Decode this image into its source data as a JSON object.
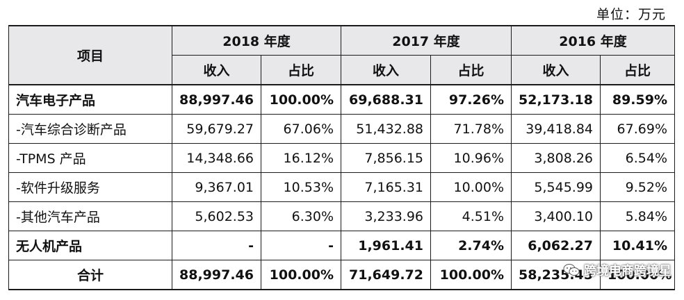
{
  "unit_label": "单位：万元",
  "header": {
    "item_col": "项目",
    "years": [
      "2018 年度",
      "2017 年度",
      "2016 年度"
    ],
    "sub_cols": [
      "收入",
      "占比"
    ]
  },
  "rows": [
    {
      "item": "汽车电子产品",
      "bold": true,
      "v": [
        "88,997.46",
        "100.00%",
        "69,688.31",
        "97.26%",
        "52,173.18",
        "89.59%"
      ]
    },
    {
      "item": "-汽车综合诊断产品",
      "bold": false,
      "v": [
        "59,679.27",
        "67.06%",
        "51,432.88",
        "71.78%",
        "39,418.84",
        "67.69%"
      ]
    },
    {
      "item": "-TPMS 产品",
      "bold": false,
      "v": [
        "14,348.66",
        "16.12%",
        "7,856.15",
        "10.96%",
        "3,808.26",
        "6.54%"
      ]
    },
    {
      "item": "-软件升级服务",
      "bold": false,
      "v": [
        "9,367.01",
        "10.53%",
        "7,165.31",
        "10.00%",
        "5,545.99",
        "9.52%"
      ]
    },
    {
      "item": "-其他汽车产品",
      "bold": false,
      "v": [
        "5,602.53",
        "6.30%",
        "3,233.96",
        "4.51%",
        "3,400.10",
        "5.84%"
      ]
    },
    {
      "item": "无人机产品",
      "bold": true,
      "v": [
        "-",
        "-",
        "1,961.41",
        "2.74%",
        "6,062.27",
        "10.41%"
      ]
    },
    {
      "item": "合计",
      "bold": true,
      "total": true,
      "v": [
        "88,997.46",
        "100.00%",
        "71,649.72",
        "100.00%",
        "58,235.45",
        "100.00%"
      ]
    }
  ],
  "watermark": {
    "text": "跨境电商跨境星",
    "icon": "wechat-icon"
  }
}
